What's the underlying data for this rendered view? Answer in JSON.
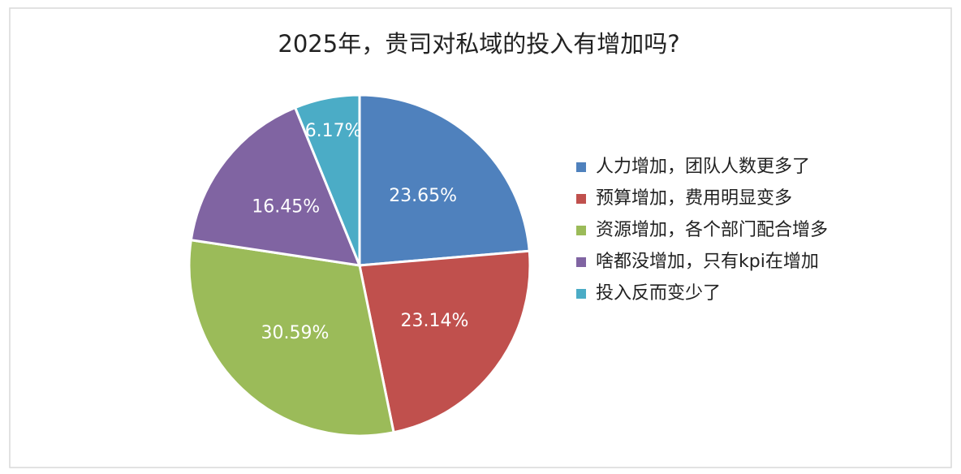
{
  "chart_data": {
    "type": "pie",
    "title": "2025年，贵司对私域的投入有增加吗?",
    "categories": [
      "人力增加，团队人数更多了",
      "预算增加，费用明显变多",
      "资源增加，各个部门配合增多",
      "啥都没增加，只有kpi在增加",
      "投入反而变少了"
    ],
    "values": [
      23.65,
      23.14,
      30.59,
      16.45,
      6.17
    ],
    "value_labels": [
      "23.65%",
      "23.14%",
      "30.59%",
      "16.45%",
      "6.17%"
    ],
    "colors": [
      "#4f81bd",
      "#c0504d",
      "#9bbb59",
      "#8064a2",
      "#4bacc6"
    ],
    "legend": "right"
  }
}
